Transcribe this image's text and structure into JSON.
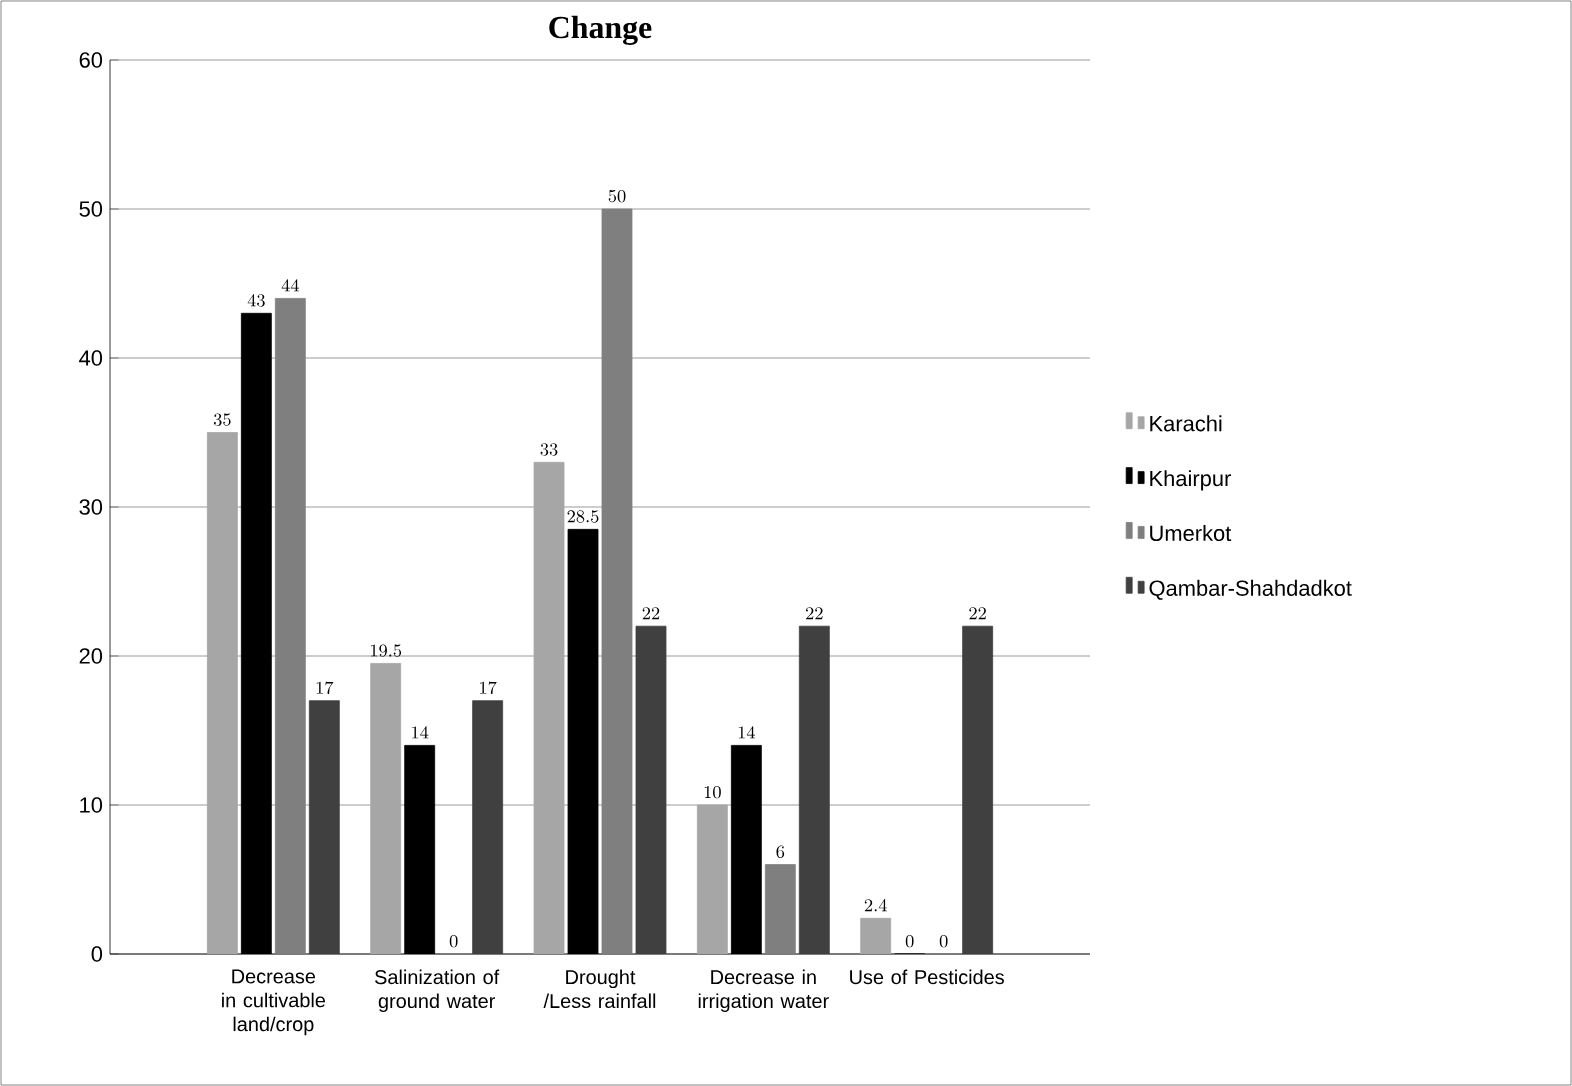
{
  "chart_data": {
    "type": "bar",
    "title": "Change",
    "categories": [
      "Decrease in cultivable land/crop",
      "Salinization of ground water",
      "Drought /Less rainfall",
      "Decrease in irrigation water",
      "Use of Pesticides"
    ],
    "series": [
      {
        "name": "Karachi",
        "color": "#a6a6a6",
        "values": [
          35,
          19.5,
          33,
          10,
          2.4
        ]
      },
      {
        "name": "Khairpur",
        "color": "#000000",
        "values": [
          43,
          14,
          28.5,
          14,
          0
        ]
      },
      {
        "name": "Umerkot",
        "color": "#7f7f7f",
        "values": [
          44,
          0,
          50,
          6,
          0
        ]
      },
      {
        "name": "Qambar-Shahdadkot",
        "color": "#404040",
        "values": [
          17,
          17,
          22,
          22,
          22
        ]
      }
    ],
    "ylim": [
      0,
      60
    ],
    "yticks": [
      0,
      10,
      20,
      30,
      40,
      50,
      60
    ],
    "grid": "y",
    "legend": "right",
    "data_labels": true
  }
}
